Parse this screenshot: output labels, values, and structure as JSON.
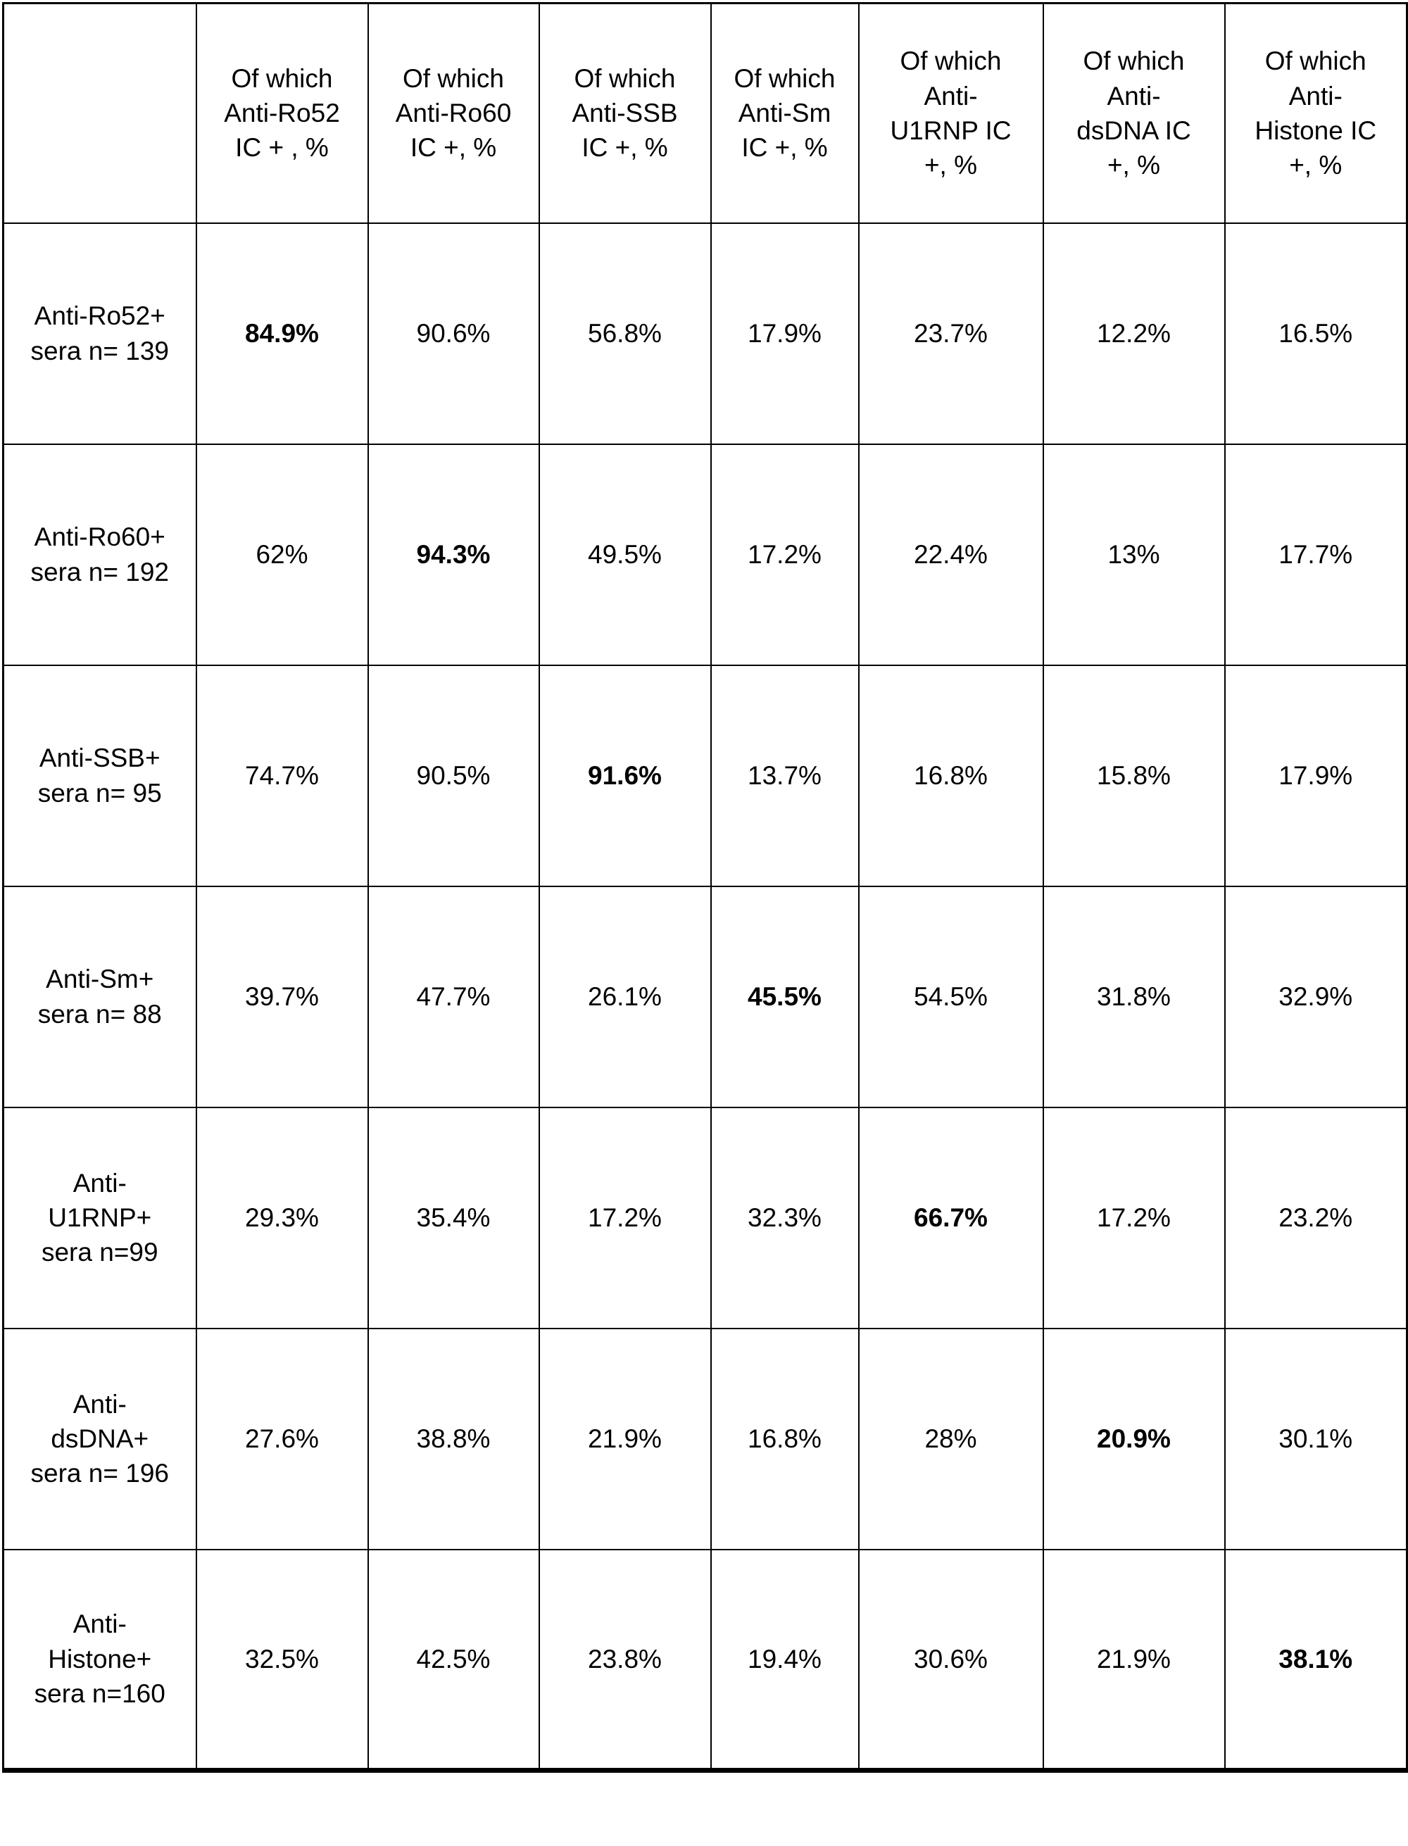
{
  "chart_data": {
    "type": "table",
    "corner_label": "",
    "columns": [
      {
        "label": "Of which\nAnti-Ro52\nIC + , %"
      },
      {
        "label": "Of which\nAnti-Ro60\nIC +, %"
      },
      {
        "label": "Of which\nAnti-SSB\nIC +, %"
      },
      {
        "label": "Of which\nAnti-Sm\nIC +, %"
      },
      {
        "label": "Of which\nAnti-\nU1RNP IC\n+, %"
      },
      {
        "label": "Of which\nAnti-\ndsDNA IC\n+, %"
      },
      {
        "label": "Of which\nAnti-\nHistone IC\n+, %"
      }
    ],
    "rows": [
      {
        "label": "Anti-Ro52+\nsera n= 139",
        "values": [
          "84.9%",
          "90.6%",
          "56.8%",
          "17.9%",
          "23.7%",
          "12.2%",
          "16.5%"
        ],
        "bold_index": 0
      },
      {
        "label": "Anti-Ro60+\nsera n= 192",
        "values": [
          "62%",
          "94.3%",
          "49.5%",
          "17.2%",
          "22.4%",
          "13%",
          "17.7%"
        ],
        "bold_index": 1
      },
      {
        "label": "Anti-SSB+\nsera n= 95",
        "values": [
          "74.7%",
          "90.5%",
          "91.6%",
          "13.7%",
          "16.8%",
          "15.8%",
          "17.9%"
        ],
        "bold_index": 2
      },
      {
        "label": "Anti-Sm+\nsera  n= 88",
        "values": [
          "39.7%",
          "47.7%",
          "26.1%",
          "45.5%",
          "54.5%",
          "31.8%",
          "32.9%"
        ],
        "bold_index": 3
      },
      {
        "label": "Anti-\nU1RNP+\nsera n=99",
        "values": [
          "29.3%",
          "35.4%",
          "17.2%",
          "32.3%",
          "66.7%",
          "17.2%",
          "23.2%"
        ],
        "bold_index": 4
      },
      {
        "label": "Anti-\ndsDNA+\nsera n= 196",
        "values": [
          "27.6%",
          "38.8%",
          "21.9%",
          "16.8%",
          "28%",
          "20.9%",
          "30.1%"
        ],
        "bold_index": 5
      },
      {
        "label": "Anti-\nHistone+\nsera n=160",
        "values": [
          "32.5%",
          "42.5%",
          "23.8%",
          "19.4%",
          "30.6%",
          "21.9%",
          "38.1%"
        ],
        "bold_index": 6
      }
    ],
    "text_color": "#000000",
    "border_color": "#000000",
    "background_color": "#ffffff",
    "legend_position": "none",
    "grid": true
  }
}
